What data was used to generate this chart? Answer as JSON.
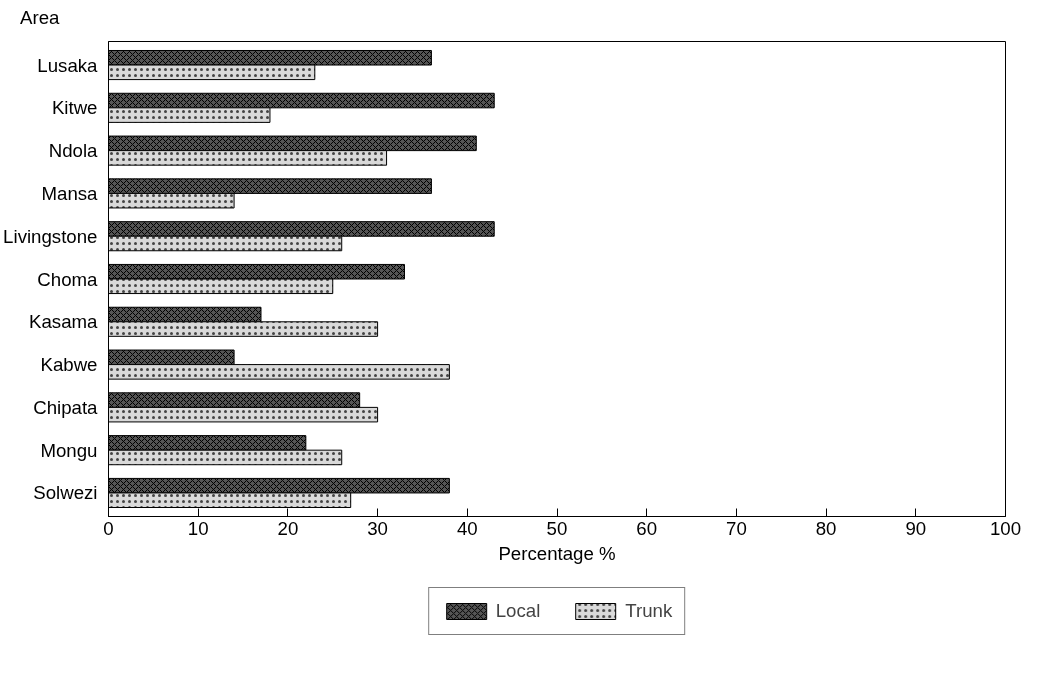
{
  "chart_data": {
    "type": "bar",
    "orientation": "horizontal",
    "ylabel": "Area",
    "xlabel": "Percentage %",
    "categories": [
      "Lusaka",
      "Kitwe",
      "Ndola",
      "Mansa",
      "Livingstone",
      "Choma",
      "Kasama",
      "Kabwe",
      "Chipata",
      "Mongu",
      "Solwezi"
    ],
    "series": [
      {
        "name": "Local",
        "color": "#555555",
        "values": [
          36,
          43,
          41,
          36,
          43,
          33,
          17,
          14,
          28,
          22,
          38
        ]
      },
      {
        "name": "Trunk",
        "color": "#d9d9d9",
        "values": [
          23,
          18,
          31,
          14,
          26,
          25,
          30,
          38,
          30,
          26,
          27
        ]
      }
    ],
    "xlim": [
      0,
      100
    ],
    "xticks": [
      0,
      10,
      20,
      30,
      40,
      50,
      60,
      70,
      80,
      90,
      100
    ],
    "grid": false,
    "legend": "bottom"
  }
}
